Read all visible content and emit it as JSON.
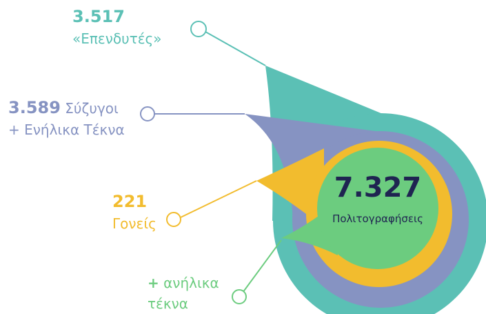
{
  "total": {
    "value": "7.327",
    "label": "Πολιτογραφήσεις"
  },
  "groups": [
    {
      "value": "3.517",
      "label": [
        "«Επενδυτές»"
      ]
    },
    {
      "value": "3.589",
      "label": [
        "Σύζυγοι",
        "+ Ενήλικα Τέκνα"
      ]
    },
    {
      "value": "221",
      "label": [
        "Γονείς"
      ]
    },
    {
      "prefix": "+",
      "label": [
        "ανήλικα",
        "τέκνα"
      ]
    }
  ]
}
